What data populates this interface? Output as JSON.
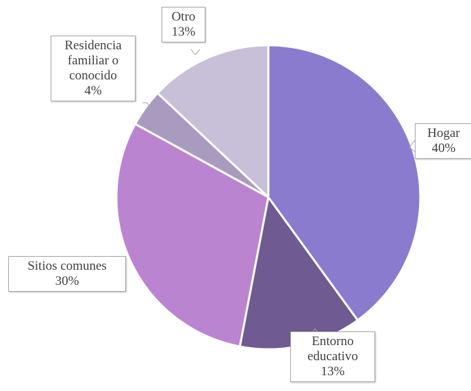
{
  "chart_data": {
    "type": "pie",
    "categories": [
      "Hogar",
      "Entorno educativo",
      "Sitios comunes",
      "Residencia familiar o conocido",
      "Otro"
    ],
    "values": [
      40,
      13,
      30,
      4,
      13
    ],
    "value_labels": [
      "40%",
      "13%",
      "30%",
      "4%",
      "13%"
    ],
    "colors": [
      "#8b7bcf",
      "#6f5a92",
      "#bb84d0",
      "#a99bc0",
      "#c8c0d8"
    ]
  }
}
